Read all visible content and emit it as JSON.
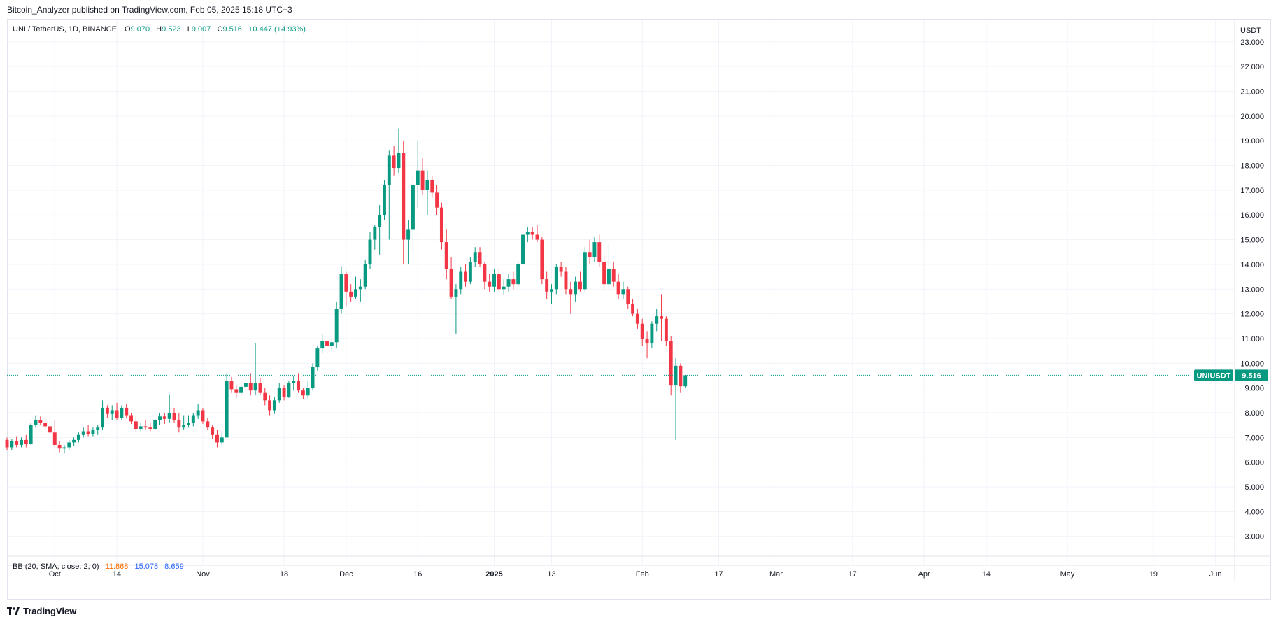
{
  "header": {
    "published_text": "Bitcoin_Analyzer published on TradingView.com, Feb 05, 2025 15:18 UTC+3"
  },
  "legend": {
    "symbol": "UNI / TetherUS, 1D, BINANCE",
    "open_label": "O",
    "open": "9.070",
    "high_label": "H",
    "high": "9.523",
    "low_label": "L",
    "low": "9.007",
    "close_label": "C",
    "close": "9.516",
    "change": "+0.447 (+4.93%)"
  },
  "indicator": {
    "label": "BB (20, SMA, close, 2, 0)",
    "basis": "11.868",
    "upper": "15.078",
    "lower": "8.659"
  },
  "price_axis": {
    "unit": "USDT"
  },
  "price_tag": {
    "symbol": "UNIUSDT",
    "value": "9.516"
  },
  "footer": {
    "brand": "TradingView",
    "logo_icon": "tradingview-logo-icon"
  },
  "colors": {
    "up": "#089981",
    "down": "#f23645",
    "grid": "#f0f3fa",
    "price_line": "#089981"
  },
  "chart_data": {
    "type": "candlestick",
    "y_ticks": [
      3,
      4,
      5,
      6,
      7,
      8,
      9,
      10,
      11,
      12,
      13,
      14,
      15,
      16,
      17,
      18,
      19,
      20,
      21,
      22,
      23
    ],
    "y_tick_labels": [
      "3.000",
      "4.000",
      "5.000",
      "6.000",
      "7.000",
      "8.000",
      "9.000",
      "10.000",
      "11.000",
      "12.000",
      "13.000",
      "14.000",
      "15.000",
      "16.000",
      "17.000",
      "18.000",
      "19.000",
      "20.000",
      "21.000",
      "22.000",
      "23.000"
    ],
    "ylim": [
      2.2,
      23.9
    ],
    "x_ticks": [
      {
        "date": "2024-10-01",
        "label": "Oct"
      },
      {
        "date": "2024-10-14",
        "label": "14"
      },
      {
        "date": "2024-11-01",
        "label": "Nov"
      },
      {
        "date": "2024-11-18",
        "label": "18"
      },
      {
        "date": "2024-12-01",
        "label": "Dec"
      },
      {
        "date": "2024-12-16",
        "label": "16"
      },
      {
        "date": "2025-01-01",
        "label": "2025",
        "bold": true
      },
      {
        "date": "2025-01-13",
        "label": "13"
      },
      {
        "date": "2025-02-01",
        "label": "Feb"
      },
      {
        "date": "2025-02-17",
        "label": "17"
      },
      {
        "date": "2025-03-01",
        "label": "Mar"
      },
      {
        "date": "2025-03-17",
        "label": "17"
      },
      {
        "date": "2025-04-01",
        "label": "Apr"
      },
      {
        "date": "2025-04-14",
        "label": "14"
      },
      {
        "date": "2025-05-01",
        "label": "May"
      },
      {
        "date": "2025-05-19",
        "label": "19"
      },
      {
        "date": "2025-06-01",
        "label": "Jun"
      }
    ],
    "xlim": [
      "2024-09-21",
      "2025-06-05"
    ],
    "last_price": 9.516,
    "candles": [
      {
        "d": "2024-09-21",
        "o": 6.9,
        "h": 7.0,
        "l": 6.5,
        "c": 6.6
      },
      {
        "d": "2024-09-22",
        "o": 6.6,
        "h": 6.95,
        "l": 6.5,
        "c": 6.85
      },
      {
        "d": "2024-09-23",
        "o": 6.85,
        "h": 7.05,
        "l": 6.6,
        "c": 6.7
      },
      {
        "d": "2024-09-24",
        "o": 6.7,
        "h": 7.0,
        "l": 6.6,
        "c": 6.9
      },
      {
        "d": "2024-09-25",
        "o": 6.9,
        "h": 7.1,
        "l": 6.6,
        "c": 6.75
      },
      {
        "d": "2024-09-26",
        "o": 6.75,
        "h": 7.6,
        "l": 6.7,
        "c": 7.5
      },
      {
        "d": "2024-09-27",
        "o": 7.5,
        "h": 7.9,
        "l": 7.4,
        "c": 7.7
      },
      {
        "d": "2024-09-28",
        "o": 7.7,
        "h": 7.85,
        "l": 7.5,
        "c": 7.6
      },
      {
        "d": "2024-09-29",
        "o": 7.6,
        "h": 7.8,
        "l": 7.35,
        "c": 7.45
      },
      {
        "d": "2024-09-30",
        "o": 7.45,
        "h": 7.9,
        "l": 7.1,
        "c": 7.2
      },
      {
        "d": "2024-10-01",
        "o": 7.2,
        "h": 7.7,
        "l": 6.6,
        "c": 6.7
      },
      {
        "d": "2024-10-02",
        "o": 6.7,
        "h": 6.85,
        "l": 6.4,
        "c": 6.55
      },
      {
        "d": "2024-10-03",
        "o": 6.55,
        "h": 6.7,
        "l": 6.35,
        "c": 6.6
      },
      {
        "d": "2024-10-04",
        "o": 6.6,
        "h": 6.9,
        "l": 6.5,
        "c": 6.8
      },
      {
        "d": "2024-10-05",
        "o": 6.8,
        "h": 7.0,
        "l": 6.65,
        "c": 6.9
      },
      {
        "d": "2024-10-06",
        "o": 6.9,
        "h": 7.2,
        "l": 6.8,
        "c": 7.1
      },
      {
        "d": "2024-10-07",
        "o": 7.1,
        "h": 7.4,
        "l": 7.0,
        "c": 7.25
      },
      {
        "d": "2024-10-08",
        "o": 7.25,
        "h": 7.5,
        "l": 7.05,
        "c": 7.15
      },
      {
        "d": "2024-10-09",
        "o": 7.15,
        "h": 7.4,
        "l": 7.05,
        "c": 7.3
      },
      {
        "d": "2024-10-10",
        "o": 7.3,
        "h": 7.5,
        "l": 7.1,
        "c": 7.4
      },
      {
        "d": "2024-10-11",
        "o": 7.4,
        "h": 8.5,
        "l": 7.3,
        "c": 8.2
      },
      {
        "d": "2024-10-12",
        "o": 8.2,
        "h": 8.3,
        "l": 7.8,
        "c": 7.95
      },
      {
        "d": "2024-10-13",
        "o": 7.95,
        "h": 8.3,
        "l": 7.7,
        "c": 8.1
      },
      {
        "d": "2024-10-14",
        "o": 8.1,
        "h": 8.4,
        "l": 7.7,
        "c": 7.8
      },
      {
        "d": "2024-10-15",
        "o": 7.8,
        "h": 8.3,
        "l": 7.7,
        "c": 8.2
      },
      {
        "d": "2024-10-16",
        "o": 8.2,
        "h": 8.35,
        "l": 7.8,
        "c": 7.9
      },
      {
        "d": "2024-10-17",
        "o": 7.9,
        "h": 8.0,
        "l": 7.55,
        "c": 7.65
      },
      {
        "d": "2024-10-18",
        "o": 7.65,
        "h": 7.85,
        "l": 7.2,
        "c": 7.35
      },
      {
        "d": "2024-10-19",
        "o": 7.35,
        "h": 7.6,
        "l": 7.25,
        "c": 7.45
      },
      {
        "d": "2024-10-20",
        "o": 7.45,
        "h": 7.7,
        "l": 7.3,
        "c": 7.4
      },
      {
        "d": "2024-10-21",
        "o": 7.4,
        "h": 7.6,
        "l": 7.25,
        "c": 7.35
      },
      {
        "d": "2024-10-22",
        "o": 7.35,
        "h": 7.75,
        "l": 7.3,
        "c": 7.7
      },
      {
        "d": "2024-10-23",
        "o": 7.7,
        "h": 8.0,
        "l": 7.5,
        "c": 7.85
      },
      {
        "d": "2024-10-24",
        "o": 7.85,
        "h": 8.0,
        "l": 7.55,
        "c": 7.75
      },
      {
        "d": "2024-10-25",
        "o": 7.75,
        "h": 8.75,
        "l": 7.6,
        "c": 8.0
      },
      {
        "d": "2024-10-26",
        "o": 8.0,
        "h": 8.2,
        "l": 7.6,
        "c": 7.7
      },
      {
        "d": "2024-10-27",
        "o": 7.7,
        "h": 8.0,
        "l": 7.2,
        "c": 7.4
      },
      {
        "d": "2024-10-28",
        "o": 7.4,
        "h": 7.9,
        "l": 7.3,
        "c": 7.5
      },
      {
        "d": "2024-10-29",
        "o": 7.5,
        "h": 7.9,
        "l": 7.4,
        "c": 7.6
      },
      {
        "d": "2024-10-30",
        "o": 7.6,
        "h": 8.0,
        "l": 7.45,
        "c": 7.9
      },
      {
        "d": "2024-10-31",
        "o": 7.9,
        "h": 8.35,
        "l": 7.75,
        "c": 8.1
      },
      {
        "d": "2024-11-01",
        "o": 8.1,
        "h": 8.2,
        "l": 7.55,
        "c": 7.65
      },
      {
        "d": "2024-11-02",
        "o": 7.65,
        "h": 7.8,
        "l": 7.3,
        "c": 7.4
      },
      {
        "d": "2024-11-03",
        "o": 7.4,
        "h": 7.5,
        "l": 6.95,
        "c": 7.1
      },
      {
        "d": "2024-11-04",
        "o": 7.1,
        "h": 7.3,
        "l": 6.6,
        "c": 6.8
      },
      {
        "d": "2024-11-05",
        "o": 6.8,
        "h": 7.2,
        "l": 6.7,
        "c": 7.0
      },
      {
        "d": "2024-11-06",
        "o": 7.0,
        "h": 9.6,
        "l": 7.0,
        "c": 9.3
      },
      {
        "d": "2024-11-07",
        "o": 9.3,
        "h": 9.45,
        "l": 8.8,
        "c": 8.95
      },
      {
        "d": "2024-11-08",
        "o": 8.95,
        "h": 9.1,
        "l": 8.6,
        "c": 8.8
      },
      {
        "d": "2024-11-09",
        "o": 8.8,
        "h": 9.2,
        "l": 8.7,
        "c": 9.05
      },
      {
        "d": "2024-11-10",
        "o": 9.05,
        "h": 9.5,
        "l": 8.9,
        "c": 9.2
      },
      {
        "d": "2024-11-11",
        "o": 9.2,
        "h": 9.6,
        "l": 8.7,
        "c": 8.9
      },
      {
        "d": "2024-11-12",
        "o": 8.9,
        "h": 10.8,
        "l": 8.7,
        "c": 9.2
      },
      {
        "d": "2024-11-13",
        "o": 9.2,
        "h": 9.4,
        "l": 8.7,
        "c": 8.8
      },
      {
        "d": "2024-11-14",
        "o": 8.8,
        "h": 9.0,
        "l": 8.3,
        "c": 8.5
      },
      {
        "d": "2024-11-15",
        "o": 8.5,
        "h": 8.7,
        "l": 7.9,
        "c": 8.1
      },
      {
        "d": "2024-11-16",
        "o": 8.1,
        "h": 8.65,
        "l": 7.95,
        "c": 8.5
      },
      {
        "d": "2024-11-17",
        "o": 8.5,
        "h": 9.2,
        "l": 8.4,
        "c": 9.0
      },
      {
        "d": "2024-11-18",
        "o": 9.0,
        "h": 9.1,
        "l": 8.5,
        "c": 8.65
      },
      {
        "d": "2024-11-19",
        "o": 8.65,
        "h": 9.3,
        "l": 8.6,
        "c": 9.2
      },
      {
        "d": "2024-11-20",
        "o": 9.2,
        "h": 9.5,
        "l": 8.9,
        "c": 9.3
      },
      {
        "d": "2024-11-21",
        "o": 9.3,
        "h": 9.6,
        "l": 8.8,
        "c": 8.9
      },
      {
        "d": "2024-11-22",
        "o": 8.9,
        "h": 9.0,
        "l": 8.55,
        "c": 8.7
      },
      {
        "d": "2024-11-23",
        "o": 8.7,
        "h": 9.3,
        "l": 8.6,
        "c": 9.0
      },
      {
        "d": "2024-11-24",
        "o": 9.0,
        "h": 10.0,
        "l": 8.9,
        "c": 9.85
      },
      {
        "d": "2024-11-25",
        "o": 9.85,
        "h": 10.7,
        "l": 9.7,
        "c": 10.6
      },
      {
        "d": "2024-11-26",
        "o": 10.6,
        "h": 11.2,
        "l": 10.4,
        "c": 10.9
      },
      {
        "d": "2024-11-27",
        "o": 10.9,
        "h": 11.1,
        "l": 10.4,
        "c": 10.7
      },
      {
        "d": "2024-11-28",
        "o": 10.7,
        "h": 11.0,
        "l": 10.5,
        "c": 10.85
      },
      {
        "d": "2024-11-29",
        "o": 10.85,
        "h": 12.5,
        "l": 10.6,
        "c": 12.2
      },
      {
        "d": "2024-11-30",
        "o": 12.2,
        "h": 13.9,
        "l": 12.0,
        "c": 13.6
      },
      {
        "d": "2024-12-01",
        "o": 13.6,
        "h": 13.7,
        "l": 12.3,
        "c": 12.9
      },
      {
        "d": "2024-12-02",
        "o": 12.9,
        "h": 13.2,
        "l": 12.5,
        "c": 12.7
      },
      {
        "d": "2024-12-03",
        "o": 12.7,
        "h": 13.5,
        "l": 12.6,
        "c": 13.0
      },
      {
        "d": "2024-12-04",
        "o": 13.0,
        "h": 13.4,
        "l": 12.5,
        "c": 13.1
      },
      {
        "d": "2024-12-05",
        "o": 13.1,
        "h": 14.2,
        "l": 13.0,
        "c": 14.0
      },
      {
        "d": "2024-12-06",
        "o": 14.0,
        "h": 15.3,
        "l": 13.8,
        "c": 15.0
      },
      {
        "d": "2024-12-07",
        "o": 15.0,
        "h": 15.6,
        "l": 14.6,
        "c": 15.5
      },
      {
        "d": "2024-12-08",
        "o": 15.5,
        "h": 16.4,
        "l": 14.4,
        "c": 16.0
      },
      {
        "d": "2024-12-09",
        "o": 16.0,
        "h": 17.4,
        "l": 15.8,
        "c": 17.2
      },
      {
        "d": "2024-12-10",
        "o": 17.2,
        "h": 18.6,
        "l": 15.0,
        "c": 18.4
      },
      {
        "d": "2024-12-11",
        "o": 18.4,
        "h": 18.8,
        "l": 17.6,
        "c": 17.9
      },
      {
        "d": "2024-12-12",
        "o": 17.9,
        "h": 19.5,
        "l": 17.7,
        "c": 18.5
      },
      {
        "d": "2024-12-13",
        "o": 18.5,
        "h": 19.0,
        "l": 14.0,
        "c": 15.0
      },
      {
        "d": "2024-12-14",
        "o": 15.0,
        "h": 15.8,
        "l": 14.0,
        "c": 15.4
      },
      {
        "d": "2024-12-15",
        "o": 15.4,
        "h": 17.5,
        "l": 14.5,
        "c": 17.2
      },
      {
        "d": "2024-12-16",
        "o": 17.2,
        "h": 19.0,
        "l": 16.3,
        "c": 17.8
      },
      {
        "d": "2024-12-17",
        "o": 17.8,
        "h": 18.3,
        "l": 16.8,
        "c": 17.0
      },
      {
        "d": "2024-12-18",
        "o": 17.0,
        "h": 17.8,
        "l": 16.0,
        "c": 17.4
      },
      {
        "d": "2024-12-19",
        "o": 17.4,
        "h": 17.6,
        "l": 16.7,
        "c": 16.9
      },
      {
        "d": "2024-12-20",
        "o": 16.9,
        "h": 17.2,
        "l": 16.0,
        "c": 16.3
      },
      {
        "d": "2024-12-21",
        "o": 16.3,
        "h": 16.5,
        "l": 14.6,
        "c": 14.9
      },
      {
        "d": "2024-12-22",
        "o": 14.9,
        "h": 15.4,
        "l": 13.4,
        "c": 13.8
      },
      {
        "d": "2024-12-23",
        "o": 13.8,
        "h": 14.3,
        "l": 12.6,
        "c": 12.7
      },
      {
        "d": "2024-12-24",
        "o": 12.7,
        "h": 13.2,
        "l": 11.2,
        "c": 13.0
      },
      {
        "d": "2024-12-25",
        "o": 13.0,
        "h": 13.9,
        "l": 12.8,
        "c": 13.7
      },
      {
        "d": "2024-12-26",
        "o": 13.7,
        "h": 14.0,
        "l": 13.1,
        "c": 13.3
      },
      {
        "d": "2024-12-27",
        "o": 13.3,
        "h": 14.3,
        "l": 13.2,
        "c": 14.1
      },
      {
        "d": "2024-12-28",
        "o": 14.1,
        "h": 14.7,
        "l": 13.9,
        "c": 14.5
      },
      {
        "d": "2024-12-29",
        "o": 14.5,
        "h": 14.7,
        "l": 13.9,
        "c": 14.0
      },
      {
        "d": "2024-12-30",
        "o": 14.0,
        "h": 14.1,
        "l": 13.0,
        "c": 13.3
      },
      {
        "d": "2024-12-31",
        "o": 13.3,
        "h": 13.6,
        "l": 12.9,
        "c": 13.1
      },
      {
        "d": "2025-01-01",
        "o": 13.1,
        "h": 13.8,
        "l": 12.9,
        "c": 13.6
      },
      {
        "d": "2025-01-02",
        "o": 13.6,
        "h": 13.8,
        "l": 12.9,
        "c": 13.0
      },
      {
        "d": "2025-01-03",
        "o": 13.0,
        "h": 13.4,
        "l": 12.8,
        "c": 13.1
      },
      {
        "d": "2025-01-04",
        "o": 13.1,
        "h": 13.6,
        "l": 12.9,
        "c": 13.4
      },
      {
        "d": "2025-01-05",
        "o": 13.4,
        "h": 13.7,
        "l": 13.0,
        "c": 13.2
      },
      {
        "d": "2025-01-06",
        "o": 13.2,
        "h": 14.1,
        "l": 13.1,
        "c": 14.0
      },
      {
        "d": "2025-01-07",
        "o": 14.0,
        "h": 15.4,
        "l": 13.9,
        "c": 15.2
      },
      {
        "d": "2025-01-08",
        "o": 15.2,
        "h": 15.5,
        "l": 14.9,
        "c": 15.3
      },
      {
        "d": "2025-01-09",
        "o": 15.3,
        "h": 15.5,
        "l": 15.0,
        "c": 15.2
      },
      {
        "d": "2025-01-10",
        "o": 15.2,
        "h": 15.6,
        "l": 14.9,
        "c": 15.0
      },
      {
        "d": "2025-01-11",
        "o": 15.0,
        "h": 15.1,
        "l": 13.2,
        "c": 13.4
      },
      {
        "d": "2025-01-12",
        "o": 13.4,
        "h": 13.7,
        "l": 12.6,
        "c": 12.9
      },
      {
        "d": "2025-01-13",
        "o": 12.9,
        "h": 13.2,
        "l": 12.4,
        "c": 13.0
      },
      {
        "d": "2025-01-14",
        "o": 13.0,
        "h": 14.0,
        "l": 12.8,
        "c": 13.9
      },
      {
        "d": "2025-01-15",
        "o": 13.9,
        "h": 14.1,
        "l": 13.5,
        "c": 13.7
      },
      {
        "d": "2025-01-16",
        "o": 13.7,
        "h": 13.9,
        "l": 12.8,
        "c": 13.0
      },
      {
        "d": "2025-01-17",
        "o": 13.0,
        "h": 13.3,
        "l": 12.0,
        "c": 12.8
      },
      {
        "d": "2025-01-18",
        "o": 12.8,
        "h": 13.5,
        "l": 12.5,
        "c": 13.3
      },
      {
        "d": "2025-01-19",
        "o": 13.3,
        "h": 13.7,
        "l": 12.9,
        "c": 13.0
      },
      {
        "d": "2025-01-20",
        "o": 13.0,
        "h": 14.7,
        "l": 12.9,
        "c": 14.5
      },
      {
        "d": "2025-01-21",
        "o": 14.5,
        "h": 15.0,
        "l": 14.0,
        "c": 14.3
      },
      {
        "d": "2025-01-22",
        "o": 14.3,
        "h": 15.1,
        "l": 14.1,
        "c": 14.9
      },
      {
        "d": "2025-01-23",
        "o": 14.9,
        "h": 15.2,
        "l": 13.9,
        "c": 14.1
      },
      {
        "d": "2025-01-24",
        "o": 14.1,
        "h": 14.4,
        "l": 13.0,
        "c": 13.2
      },
      {
        "d": "2025-01-25",
        "o": 13.2,
        "h": 14.8,
        "l": 13.0,
        "c": 13.8
      },
      {
        "d": "2025-01-26",
        "o": 13.8,
        "h": 14.1,
        "l": 13.1,
        "c": 13.3
      },
      {
        "d": "2025-01-27",
        "o": 13.3,
        "h": 13.6,
        "l": 12.6,
        "c": 12.8
      },
      {
        "d": "2025-01-28",
        "o": 12.8,
        "h": 13.3,
        "l": 12.6,
        "c": 13.0
      },
      {
        "d": "2025-01-29",
        "o": 13.0,
        "h": 13.1,
        "l": 12.2,
        "c": 12.4
      },
      {
        "d": "2025-01-30",
        "o": 12.4,
        "h": 12.6,
        "l": 11.9,
        "c": 12.0
      },
      {
        "d": "2025-01-31",
        "o": 12.0,
        "h": 12.2,
        "l": 11.4,
        "c": 11.6
      },
      {
        "d": "2025-02-01",
        "o": 11.6,
        "h": 11.8,
        "l": 10.7,
        "c": 11.0
      },
      {
        "d": "2025-02-02",
        "o": 11.0,
        "h": 11.3,
        "l": 10.2,
        "c": 10.8
      },
      {
        "d": "2025-02-03",
        "o": 10.8,
        "h": 11.7,
        "l": 10.6,
        "c": 11.6
      },
      {
        "d": "2025-02-04",
        "o": 11.6,
        "h": 12.2,
        "l": 11.3,
        "c": 11.9
      },
      {
        "d": "2025-02-05",
        "o": 11.9,
        "h": 12.8,
        "l": 10.9,
        "c": 11.8
      },
      {
        "d": "2025-02-06",
        "o": 11.8,
        "h": 11.9,
        "l": 10.7,
        "c": 10.9
      },
      {
        "d": "2025-02-07",
        "o": 10.9,
        "h": 11.1,
        "l": 8.7,
        "c": 9.1
      },
      {
        "d": "2025-02-08",
        "o": 9.1,
        "h": 10.2,
        "l": 6.9,
        "c": 9.9
      },
      {
        "d": "2025-02-09",
        "o": 9.9,
        "h": 10.0,
        "l": 8.8,
        "c": 9.07
      },
      {
        "d": "2025-02-10",
        "o": 9.07,
        "h": 9.523,
        "l": 9.007,
        "c": 9.516
      }
    ]
  }
}
